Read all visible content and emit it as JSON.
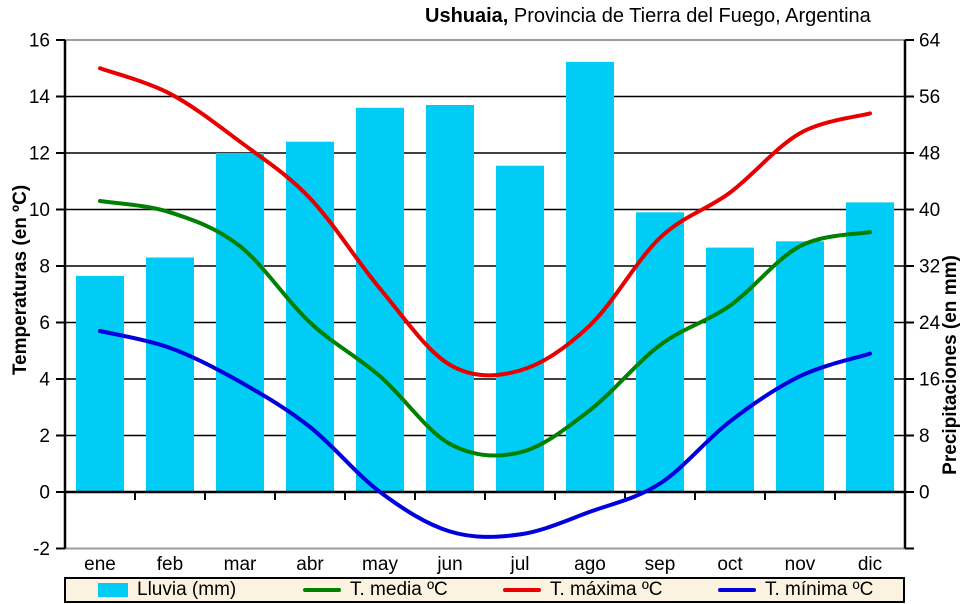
{
  "title": {
    "bold": "Ushuaia,",
    "rest": " Provincia de Tierra del Fuego, Argentina"
  },
  "legend": {
    "background": "#FBF2E0",
    "items": [
      {
        "id": "lluvia",
        "label": "Lluvia (mm)",
        "type": "bar",
        "color": "#00CCF5"
      },
      {
        "id": "t-media",
        "label": "T. media ºC",
        "type": "line",
        "color": "#008000"
      },
      {
        "id": "t-maxima",
        "label": "T. máxima ºC",
        "type": "line",
        "color": "#E80000"
      },
      {
        "id": "t-minima",
        "label": "T. mínima ºC",
        "type": "line",
        "color": "#0000DD"
      }
    ]
  },
  "chart_data": {
    "type": "combo-bar-line",
    "title": "Ushuaia, Provincia de Tierra del Fuego, Argentina",
    "categories": [
      "ene",
      "feb",
      "mar",
      "abr",
      "may",
      "jun",
      "jul",
      "ago",
      "sep",
      "oct",
      "nov",
      "dic"
    ],
    "bars": {
      "name": "Lluvia (mm)",
      "color": "#00CCF5",
      "axis": "right",
      "values_mm": [
        30.6,
        33.2,
        48.0,
        49.6,
        54.4,
        54.8,
        46.2,
        60.9,
        39.6,
        34.6,
        35.5,
        41.0
      ]
    },
    "series": [
      {
        "id": "t-media",
        "name": "T. media ºC",
        "color": "#008000",
        "axis": "left",
        "values": [
          10.3,
          9.9,
          8.7,
          6.0,
          4.1,
          1.7,
          1.4,
          2.9,
          5.2,
          6.6,
          8.7,
          9.2
        ]
      },
      {
        "id": "t-maxima",
        "name": "T. máxima ºC",
        "color": "#E80000",
        "axis": "left",
        "values": [
          15.0,
          14.1,
          12.4,
          10.4,
          7.2,
          4.5,
          4.3,
          5.9,
          9.0,
          10.6,
          12.7,
          13.4
        ]
      },
      {
        "id": "t-minima",
        "name": "T. mínima ºC",
        "color": "#0000DD",
        "axis": "left",
        "values": [
          5.7,
          5.1,
          3.9,
          2.3,
          0.0,
          -1.4,
          -1.5,
          -0.7,
          0.3,
          2.5,
          4.1,
          4.9
        ]
      }
    ],
    "y_left": {
      "label": "Temperaturas (en ºC)",
      "min": -2,
      "max": 16,
      "step": 2,
      "ticks": [
        16,
        14,
        12,
        10,
        8,
        6,
        4,
        2,
        0,
        -2
      ]
    },
    "y_right": {
      "label": "Precipitaciones (en mm)",
      "min": -8,
      "max": 64,
      "step": 8,
      "ticks": [
        64,
        56,
        48,
        40,
        32,
        24,
        16,
        8,
        0
      ]
    },
    "grid": true,
    "legend_position": "bottom"
  }
}
